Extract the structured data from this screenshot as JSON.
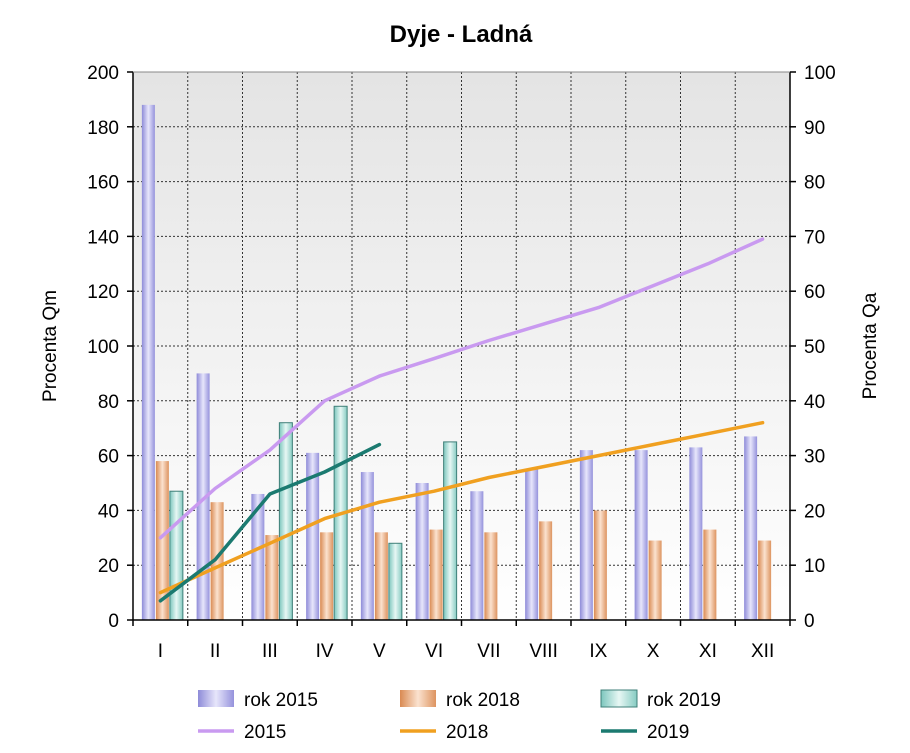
{
  "chart_data": {
    "type": "bar",
    "title": "Dyje - Ladná",
    "ylabel": "Procenta Qm",
    "y2label": "Procenta Qa",
    "ylim": [
      0,
      200
    ],
    "y2lim": [
      0,
      100
    ],
    "yticks": [
      0,
      20,
      40,
      60,
      80,
      100,
      120,
      140,
      160,
      180,
      200
    ],
    "y2ticks": [
      0,
      10,
      20,
      30,
      40,
      50,
      60,
      70,
      80,
      90,
      100
    ],
    "categories": [
      "I",
      "II",
      "III",
      "IV",
      "V",
      "VI",
      "VII",
      "VIII",
      "IX",
      "X",
      "XI",
      "XII"
    ],
    "grid": true,
    "legend_position": "bottom",
    "bar_series": [
      {
        "name": "rok 2015",
        "axis": "left",
        "color": "#a9a6e6",
        "values": [
          188,
          90,
          46,
          61,
          54,
          50,
          47,
          55,
          62,
          62,
          63,
          67
        ]
      },
      {
        "name": "rok 2018",
        "axis": "left",
        "color": "#e9a878",
        "values": [
          58,
          43,
          31,
          32,
          32,
          33,
          32,
          36,
          40,
          29,
          33,
          29
        ]
      },
      {
        "name": "rok 2019",
        "axis": "left",
        "color": "#9ad6cf",
        "values": [
          47,
          0,
          72,
          78,
          28,
          65,
          null,
          null,
          null,
          null,
          null,
          null
        ]
      }
    ],
    "line_series": [
      {
        "name": "2015",
        "axis": "right",
        "color": "#c99af0",
        "values": [
          15,
          24,
          31,
          40,
          44.5,
          47.7,
          51,
          54,
          57,
          61,
          65,
          69.5
        ]
      },
      {
        "name": "2018",
        "axis": "right",
        "color": "#f0a020",
        "values": [
          5,
          9.5,
          14,
          18.5,
          21.5,
          23.5,
          26,
          28,
          30,
          32,
          34,
          36
        ]
      },
      {
        "name": "2019",
        "axis": "right",
        "color": "#1b7a70",
        "values": [
          3.5,
          11,
          23,
          27,
          32,
          null,
          null,
          null,
          null,
          null,
          null,
          null
        ]
      }
    ]
  }
}
